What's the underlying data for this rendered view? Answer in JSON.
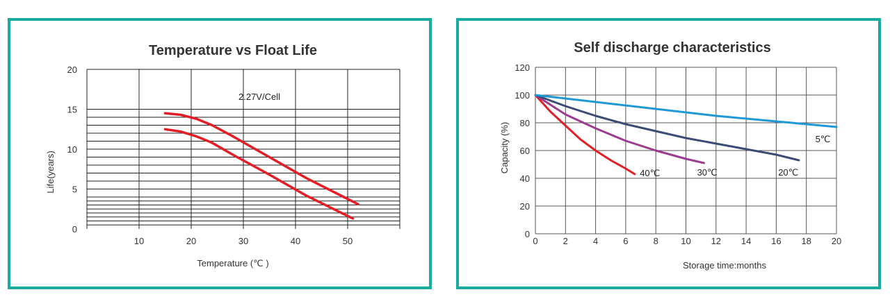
{
  "colors": {
    "frame": "#1aaba0",
    "red": "#e41e26",
    "purple": "#9c3b90",
    "navy": "#3b4b73",
    "blue": "#1e98d6"
  },
  "chart_data": [
    {
      "type": "line",
      "title": "Temperature vs Float Life",
      "xlabel": "Temperature (℃ )",
      "ylabel": "Life(years)",
      "xlim": [
        0,
        60
      ],
      "ylim": [
        0,
        20
      ],
      "xticks": [
        10,
        20,
        30,
        40,
        50
      ],
      "yticks": [
        0,
        5,
        10,
        15,
        20
      ],
      "annotation": "2.27V/Cell",
      "series": [
        {
          "name": "upper bound",
          "color": "#e41e26",
          "x": [
            15,
            18,
            21,
            24,
            28,
            35,
            42,
            52
          ],
          "y": [
            14.5,
            14.3,
            13.8,
            13.0,
            11.6,
            9.0,
            6.4,
            3.1
          ]
        },
        {
          "name": "lower bound",
          "color": "#e41e26",
          "x": [
            15,
            18,
            21,
            24,
            28,
            35,
            42,
            51
          ],
          "y": [
            12.5,
            12.2,
            11.6,
            10.8,
            9.3,
            6.8,
            4.2,
            1.3
          ]
        }
      ]
    },
    {
      "type": "line",
      "title": "Self discharge characteristics",
      "xlabel": "Storage time:months",
      "ylabel": "Capacity (%)",
      "xlim": [
        0,
        20
      ],
      "ylim": [
        0,
        120
      ],
      "xticks": [
        0,
        2,
        4,
        6,
        8,
        10,
        12,
        14,
        16,
        18,
        20
      ],
      "yticks": [
        0,
        20,
        40,
        60,
        80,
        100,
        120
      ],
      "series": [
        {
          "name": "40℃",
          "color": "#e41e26",
          "x": [
            0,
            1,
            2,
            3,
            4,
            5,
            6,
            6.6
          ],
          "y": [
            100,
            88,
            78,
            68,
            60,
            53,
            47,
            43
          ]
        },
        {
          "name": "30℃",
          "color": "#9c3b90",
          "x": [
            0,
            2,
            4,
            6,
            8,
            10,
            11.2
          ],
          "y": [
            100,
            86,
            76,
            67,
            60,
            54,
            51
          ]
        },
        {
          "name": "20℃",
          "color": "#3b4b73",
          "x": [
            0,
            2,
            4,
            6,
            8,
            10,
            12,
            14,
            16,
            17.5
          ],
          "y": [
            100,
            92,
            85,
            79,
            74,
            69,
            65,
            61,
            57,
            53
          ]
        },
        {
          "name": "5℃",
          "color": "#1e98d6",
          "x": [
            0,
            4,
            8,
            12,
            16,
            20
          ],
          "y": [
            100,
            95,
            90,
            85,
            81,
            77
          ]
        }
      ]
    }
  ]
}
